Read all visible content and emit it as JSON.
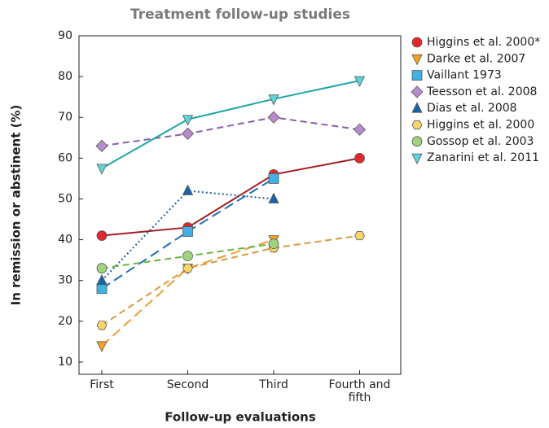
{
  "chart_data": {
    "type": "line",
    "title": "Treatment follow-up studies",
    "x_label": "Follow-up evaluations",
    "y_label": "In remission or abstinent (%)",
    "categories": [
      "First",
      "Second",
      "Third",
      "Fourth and fifth"
    ],
    "ylim": [
      7,
      90
    ],
    "yticks": [
      10,
      20,
      30,
      40,
      50,
      60,
      70,
      80,
      90
    ],
    "grid": false,
    "legend": "right",
    "series": [
      {
        "name": "Higgins et al. 2000*",
        "color": "#e3262b",
        "line_color": "#a31c22",
        "dash": "solid",
        "marker": "circle",
        "values": [
          41,
          43,
          56,
          60
        ]
      },
      {
        "name": "Darke et al. 2007",
        "color": "#f7a21b",
        "line_color": "#f39c36",
        "dash": "long",
        "marker": "triangle-down",
        "values": [
          14,
          33,
          40,
          null
        ]
      },
      {
        "name": "Vaillant 1973",
        "color": "#41b0e4",
        "line_color": "#1f6fb5",
        "dash": "long",
        "marker": "square",
        "values": [
          28,
          42,
          55,
          null
        ]
      },
      {
        "name": "Teesson et al. 2008",
        "color": "#b88ccc",
        "line_color": "#8b5ea8",
        "dash": "dash",
        "marker": "diamond",
        "values": [
          63,
          66,
          70,
          67
        ]
      },
      {
        "name": "Dias et al. 2008",
        "color": "#1a64a8",
        "line_color": "#1f5f9e",
        "dash": "dot",
        "marker": "triangle-up",
        "values": [
          30,
          52,
          50,
          null
        ]
      },
      {
        "name": "Higgins et al. 2000",
        "color": "#f9d66a",
        "line_color": "#d89a3c",
        "dash": "dash",
        "marker": "hexagon",
        "values": [
          19,
          33,
          38,
          41
        ]
      },
      {
        "name": "Gossop et al. 2003",
        "color": "#9fd37c",
        "line_color": "#6bb33f",
        "dash": "dash",
        "marker": "circle",
        "values": [
          33,
          36,
          39,
          null
        ]
      },
      {
        "name": "Zanarini et al. 2011",
        "color": "#5fd3d8",
        "line_color": "#1fa5a8",
        "dash": "solid",
        "marker": "triangle-down",
        "values": [
          57.5,
          69.5,
          74.5,
          79
        ]
      }
    ]
  }
}
